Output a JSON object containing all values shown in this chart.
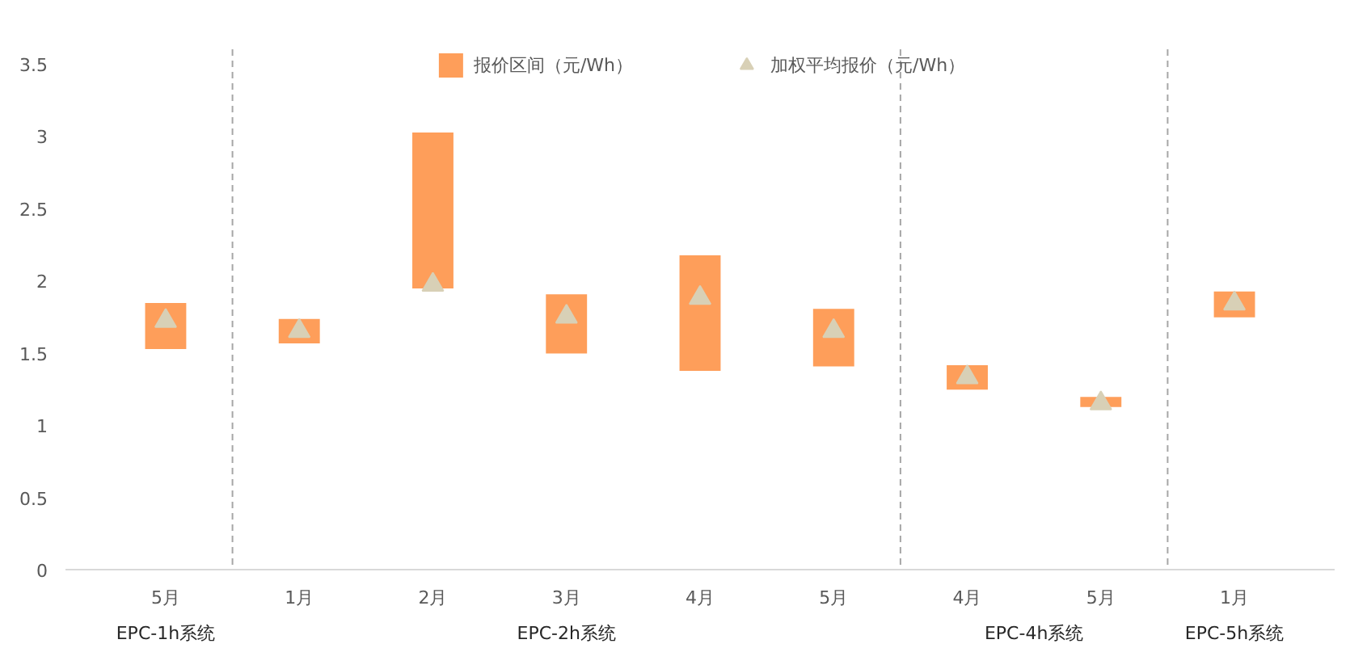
{
  "chart_data": {
    "type": "bar",
    "categories": [
      "5月",
      "1月",
      "2月",
      "3月",
      "4月",
      "5月",
      "4月",
      "5月",
      "1月"
    ],
    "ylim": [
      0,
      3.6
    ],
    "yticks": [
      0,
      0.5,
      1,
      1.5,
      2,
      2.5,
      3,
      3.5
    ],
    "grid": false,
    "legend": "top",
    "series": [
      {
        "name": "报价区间（元/Wh）",
        "color": "#fe9e5a",
        "base": [
          1.52,
          1.56,
          1.94,
          1.49,
          1.37,
          1.4,
          1.24,
          1.12,
          1.74
        ],
        "values": [
          0.33,
          0.18,
          1.09,
          0.42,
          0.81,
          0.41,
          0.18,
          0.08,
          0.19
        ]
      },
      {
        "name": "加权平均报价（元/Wh）",
        "type": "scatter",
        "marker": "triangle",
        "color": "#d8d0b6",
        "values": [
          1.72,
          1.65,
          1.97,
          1.75,
          1.88,
          1.65,
          1.33,
          1.15,
          1.84
        ]
      }
    ],
    "annotations": [
      "EPC-1h系统",
      "EPC-2h系统",
      "EPC-4h系统",
      "EPC-5h系统"
    ]
  }
}
